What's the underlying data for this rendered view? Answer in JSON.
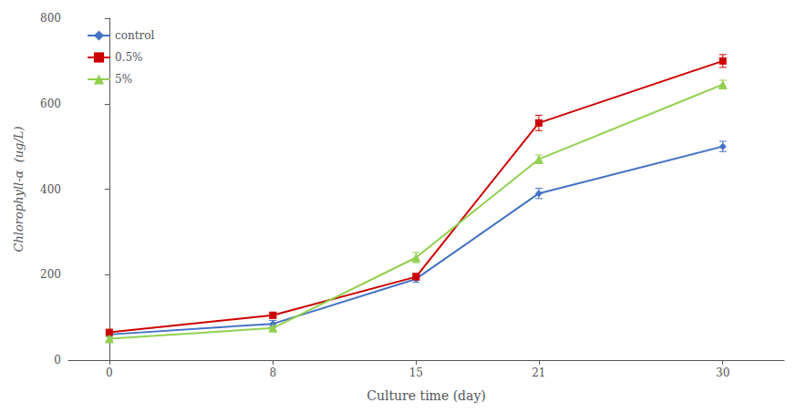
{
  "chart_data": {
    "type": "line",
    "xlabel": "Culture time (day)",
    "ylabel": "Chlorophyll-α  (ug/L)",
    "x": [
      0,
      8,
      15,
      21,
      30
    ],
    "series": [
      {
        "name": "control",
        "color": "#4472C4",
        "marker": "diamond",
        "values": [
          60,
          85,
          190,
          390,
          500
        ],
        "errors": [
          5,
          8,
          8,
          12,
          12
        ]
      },
      {
        "name": "0.5%",
        "color": "#CC0000",
        "marker": "square",
        "values": [
          65,
          105,
          195,
          555,
          700
        ],
        "errors": [
          4,
          7,
          8,
          18,
          15
        ]
      },
      {
        "name": "5%",
        "color": "#92D050",
        "marker": "triangle",
        "values": [
          50,
          75,
          240,
          470,
          645
        ],
        "errors": [
          4,
          5,
          12,
          10,
          10
        ]
      }
    ],
    "xlim": [
      -2,
      33
    ],
    "xticks": [
      0,
      8,
      15,
      21,
      30
    ],
    "ylim": [
      0,
      800
    ],
    "yticks": [
      0,
      200,
      400,
      600,
      800
    ],
    "grid": false,
    "legend": "upper left"
  }
}
